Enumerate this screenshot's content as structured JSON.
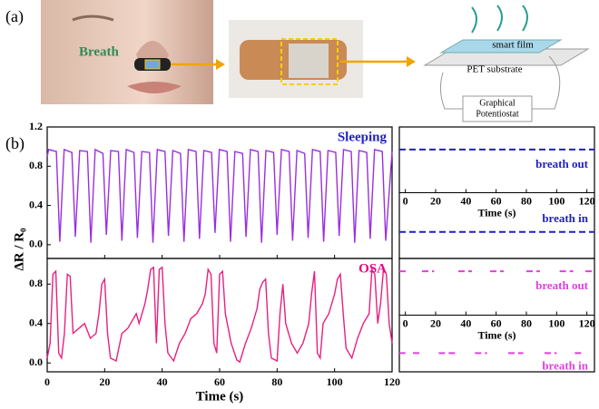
{
  "panel_a": {
    "label": "(a)",
    "breath": "Breath",
    "smart_film": "smart film",
    "pet": "PET substrate",
    "potentiostat": [
      "Graphical",
      "Potentiostat"
    ]
  },
  "panel_b": {
    "label": "(b)",
    "ylabel": "ΔR / R₀"
  },
  "chart_data": [
    {
      "type": "line",
      "label": "Sleeping",
      "label_color": "#1f1fc8",
      "xlim": [
        0,
        120
      ],
      "xticks": [
        0,
        20,
        40,
        60,
        80,
        100,
        120
      ],
      "tick_labels": false,
      "ylim": [
        -0.14,
        1.2
      ],
      "yticks": [
        {
          "value": 0,
          "label": "0.0"
        },
        {
          "value": 0.4,
          "label": "0.4"
        },
        {
          "value": 0.8,
          "label": "0.8"
        },
        {
          "value": 1.2,
          "label": "1.2"
        }
      ],
      "series": [
        {
          "name": "Sleeping",
          "color": "#9a2fe0",
          "x": [
            0,
            0.5,
            3.2,
            4.4,
            5.9,
            8.6,
            9.8,
            11.3,
            14,
            15.2,
            16.7,
            19.4,
            20.6,
            22.1,
            24.8,
            26,
            27.5,
            30.2,
            31.4,
            32.9,
            35.6,
            36.8,
            38.3,
            41,
            42.2,
            43.7,
            46.4,
            47.6,
            49.1,
            51.8,
            53,
            54.5,
            57.2,
            58.4,
            59.9,
            62.6,
            63.8,
            65.3,
            68,
            69.2,
            70.7,
            73.4,
            74.6,
            76.1,
            78.8,
            80,
            81.5,
            84.2,
            85.4,
            86.9,
            89.6,
            90.8,
            92.3,
            95,
            96.2,
            97.7,
            100.4,
            101.6,
            103.1,
            105.8,
            107,
            108.5,
            111.2,
            112.4,
            113.9,
            116.6,
            117.8,
            120
          ],
          "values": [
            0.9,
            0.97,
            0.95,
            0.03,
            0.97,
            0.94,
            0.08,
            0.96,
            0.95,
            0.02,
            0.97,
            0.93,
            0.1,
            0.96,
            0.95,
            0.04,
            0.97,
            0.94,
            0.07,
            0.95,
            0.94,
            0.02,
            0.97,
            0.95,
            0.09,
            0.96,
            0.93,
            0.03,
            0.97,
            0.95,
            0.06,
            0.96,
            0.94,
            0.12,
            0.97,
            0.95,
            0.03,
            0.95,
            0.93,
            0.08,
            0.97,
            0.95,
            0.02,
            0.96,
            0.94,
            0.1,
            0.97,
            0.95,
            0.04,
            0.96,
            0.93,
            0.07,
            0.97,
            0.95,
            0.03,
            0.96,
            0.94,
            0.09,
            0.97,
            0.95,
            0.02,
            0.96,
            0.94,
            0.06,
            0.97,
            0.95,
            0.04,
            0.95
          ]
        }
      ]
    },
    {
      "type": "line",
      "label": "OSA",
      "label_color": "#e6007e",
      "xlim": [
        0,
        120
      ],
      "xticks": [
        0,
        20,
        40,
        60,
        80,
        100,
        120
      ],
      "tick_labels": true,
      "xlabel": "Time (s)",
      "ylim": [
        -0.09,
        1.06
      ],
      "yticks": [
        {
          "value": 0,
          "label": "0.0"
        },
        {
          "value": 0.4,
          "label": "0.4"
        },
        {
          "value": 0.8,
          "label": "0.8"
        }
      ],
      "series": [
        {
          "name": "OSA",
          "color": "#e8207f",
          "x": [
            0,
            1,
            2,
            3,
            4,
            5,
            6,
            7,
            8,
            9,
            11,
            13,
            15,
            17,
            18,
            19,
            20,
            21,
            22,
            24,
            26,
            28,
            30,
            31,
            32,
            34,
            35,
            36,
            37,
            38,
            39,
            40,
            41,
            42,
            44,
            46,
            48,
            50,
            52,
            54,
            55,
            56,
            57,
            58,
            59,
            60,
            61,
            62,
            64,
            66,
            67,
            69,
            71,
            73,
            74,
            75,
            76,
            77,
            78,
            80,
            81,
            82,
            83,
            85,
            87,
            89,
            91,
            92,
            93,
            94,
            95,
            96,
            98,
            100,
            101,
            102,
            103,
            104,
            106,
            108,
            110,
            112,
            113,
            114,
            115,
            116,
            117,
            118,
            119,
            120
          ],
          "values": [
            0.05,
            0.2,
            0.9,
            0.93,
            0.1,
            0.05,
            0.3,
            0.9,
            0.88,
            0.3,
            0.35,
            0.4,
            0.25,
            0.3,
            0.5,
            0.8,
            0.85,
            0.3,
            0.05,
            0.02,
            0.3,
            0.35,
            0.45,
            0.5,
            0.4,
            0.6,
            0.75,
            0.95,
            0.97,
            0.2,
            0.95,
            0.97,
            0.4,
            0.1,
            0.02,
            0.2,
            0.3,
            0.45,
            0.5,
            0.6,
            0.7,
            0.95,
            0.9,
            0.2,
            0.1,
            0.9,
            0.93,
            0.5,
            0.2,
            0.03,
            0.01,
            0.2,
            0.35,
            0.55,
            0.75,
            0.82,
            0.85,
            0.3,
            0.05,
            0.02,
            0.5,
            0.8,
            0.4,
            0.2,
            0.1,
            0.2,
            0.4,
            0.7,
            0.93,
            0.1,
            0.05,
            0.4,
            0.5,
            0.7,
            0.85,
            0.9,
            0.5,
            0.15,
            0.05,
            0.25,
            0.4,
            0.5,
            0.95,
            0.9,
            0.4,
            0.6,
            0.95,
            0.9,
            0.4,
            0.2
          ]
        }
      ]
    },
    {
      "type": "level",
      "xlim": [
        -4,
        125
      ],
      "xticks": [
        0,
        20,
        40,
        60,
        80,
        100,
        120
      ],
      "xlabel": "Time (s)",
      "ylim": [
        -0.14,
        1.2
      ],
      "series": [
        {
          "name": "breath out",
          "color": "#1f1fc8",
          "value": 0.97,
          "segments": [
            [
              -4,
              125
            ]
          ]
        },
        {
          "name": "breath in",
          "color": "#1f1fc8",
          "value": 0.13,
          "segments": [
            [
              -4,
              125
            ]
          ]
        }
      ]
    },
    {
      "type": "level",
      "xlim": [
        -4,
        125
      ],
      "xticks": [
        0,
        20,
        40,
        60,
        80,
        100,
        120
      ],
      "xlabel": "Time (s)",
      "ylim": [
        -0.09,
        1.06
      ],
      "series": [
        {
          "name": "breath out",
          "color": "#e040e0",
          "value": 0.93,
          "segments": [
            [
              -4,
              2
            ],
            [
              11,
              19
            ],
            [
              35,
              44
            ],
            [
              56,
              65
            ],
            [
              80,
              89
            ],
            [
              102,
              111
            ],
            [
              119,
              125
            ]
          ]
        },
        {
          "name": "breath in",
          "color": "#e040e0",
          "value": 0.1,
          "segments": [
            [
              -4,
              0
            ],
            [
              5,
              11
            ],
            [
              22,
              33
            ],
            [
              46,
              54
            ],
            [
              68,
              78
            ],
            [
              92,
              100
            ],
            [
              112,
              118
            ]
          ]
        }
      ]
    }
  ]
}
